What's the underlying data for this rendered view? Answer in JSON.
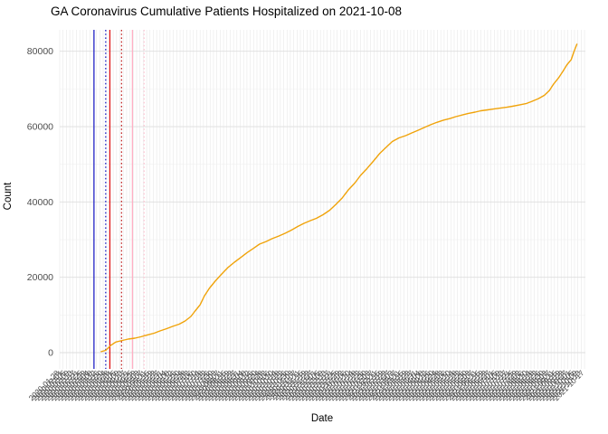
{
  "chart_data": {
    "type": "line",
    "title": "GA Coronavirus Cumulative Patients Hospitalized on 2021-10-08",
    "xlabel": "Date",
    "ylabel": "Count",
    "x_axis": {
      "start_date": "2020-01-28",
      "end_date": "2021-10-18",
      "tick_every_days": 4,
      "label_rotation_deg": 45,
      "label_color": "#4D4D4D",
      "label_font_px": 8.5
    },
    "y_axis": {
      "ticks": [
        0,
        20000,
        40000,
        60000,
        80000
      ],
      "tick_labels": [
        "0",
        "20000",
        "40000",
        "60000",
        "80000"
      ],
      "minor_ticks": [
        10000,
        30000,
        50000,
        70000
      ],
      "range": [
        -4300,
        85700
      ],
      "label_color": "#4D4D4D"
    },
    "grid": {
      "show": true,
      "vertical_color": "#E8E8E8",
      "major_horizontal_color": "#DEDEDE",
      "minor_horizontal_color": "#F0F0F0"
    },
    "vlines": [
      {
        "date": "2020-03-09",
        "color": "#2424C8",
        "style": "solid"
      },
      {
        "date": "2020-03-23",
        "color": "#2424C8",
        "style": "dotted"
      },
      {
        "date": "2020-03-28",
        "color": "#DD1111",
        "style": "solid"
      },
      {
        "date": "2020-04-11",
        "color": "#C22A2A",
        "style": "dotted"
      },
      {
        "date": "2020-04-24",
        "color": "#FFB0C4",
        "style": "solid"
      },
      {
        "date": "2020-05-08",
        "color": "#FFC9D6",
        "style": "dotted"
      }
    ],
    "series": [
      {
        "name": "Cumulative Patients Hospitalized",
        "color": "#F0A30A",
        "points": [
          [
            "2020-03-17",
            250
          ],
          [
            "2020-03-23",
            600
          ],
          [
            "2020-03-29",
            1900
          ],
          [
            "2020-04-04",
            2800
          ],
          [
            "2020-04-12",
            3250
          ],
          [
            "2020-04-19",
            3600
          ],
          [
            "2020-04-27",
            3850
          ],
          [
            "2020-05-04",
            4200
          ],
          [
            "2020-05-12",
            4700
          ],
          [
            "2020-05-20",
            5150
          ],
          [
            "2020-05-27",
            5750
          ],
          [
            "2020-06-04",
            6350
          ],
          [
            "2020-06-11",
            6950
          ],
          [
            "2020-06-19",
            7550
          ],
          [
            "2020-06-26",
            8400
          ],
          [
            "2020-07-03",
            9600
          ],
          [
            "2020-07-08",
            11050
          ],
          [
            "2020-07-14",
            12700
          ],
          [
            "2020-07-19",
            15000
          ],
          [
            "2020-07-25",
            17050
          ],
          [
            "2020-08-01",
            18950
          ],
          [
            "2020-08-09",
            20900
          ],
          [
            "2020-08-16",
            22550
          ],
          [
            "2020-08-24",
            24000
          ],
          [
            "2020-09-01",
            25300
          ],
          [
            "2020-09-08",
            26500
          ],
          [
            "2020-09-16",
            27700
          ],
          [
            "2020-09-23",
            28800
          ],
          [
            "2020-10-01",
            29500
          ],
          [
            "2020-10-08",
            30250
          ],
          [
            "2020-10-16",
            30950
          ],
          [
            "2020-10-24",
            31700
          ],
          [
            "2020-10-31",
            32500
          ],
          [
            "2020-11-08",
            33500
          ],
          [
            "2020-11-15",
            34300
          ],
          [
            "2020-11-23",
            35050
          ],
          [
            "2020-11-30",
            35650
          ],
          [
            "2020-12-08",
            36600
          ],
          [
            "2020-12-16",
            37800
          ],
          [
            "2020-12-23",
            39250
          ],
          [
            "2020-12-31",
            41050
          ],
          [
            "2021-01-07",
            43100
          ],
          [
            "2021-01-15",
            45000
          ],
          [
            "2021-01-22",
            47050
          ],
          [
            "2021-01-30",
            48950
          ],
          [
            "2021-02-07",
            51000
          ],
          [
            "2021-02-14",
            52900
          ],
          [
            "2021-02-22",
            54600
          ],
          [
            "2021-03-01",
            56050
          ],
          [
            "2021-03-09",
            57000
          ],
          [
            "2021-03-17",
            57600
          ],
          [
            "2021-03-24",
            58300
          ],
          [
            "2021-04-01",
            59050
          ],
          [
            "2021-04-08",
            59750
          ],
          [
            "2021-04-16",
            60500
          ],
          [
            "2021-04-23",
            61100
          ],
          [
            "2021-05-01",
            61700
          ],
          [
            "2021-05-09",
            62150
          ],
          [
            "2021-05-16",
            62650
          ],
          [
            "2021-05-24",
            63100
          ],
          [
            "2021-05-31",
            63500
          ],
          [
            "2021-06-08",
            63850
          ],
          [
            "2021-06-15",
            64200
          ],
          [
            "2021-06-23",
            64450
          ],
          [
            "2021-07-01",
            64700
          ],
          [
            "2021-07-08",
            64900
          ],
          [
            "2021-07-16",
            65150
          ],
          [
            "2021-07-23",
            65400
          ],
          [
            "2021-07-31",
            65750
          ],
          [
            "2021-08-08",
            66100
          ],
          [
            "2021-08-15",
            66700
          ],
          [
            "2021-08-23",
            67450
          ],
          [
            "2021-08-30",
            68300
          ],
          [
            "2021-09-05",
            69600
          ],
          [
            "2021-09-10",
            71300
          ],
          [
            "2021-09-16",
            72950
          ],
          [
            "2021-09-21",
            74650
          ],
          [
            "2021-09-26",
            76450
          ],
          [
            "2021-10-01",
            77750
          ],
          [
            "2021-10-04",
            79700
          ],
          [
            "2021-10-08",
            82000
          ]
        ]
      }
    ]
  }
}
